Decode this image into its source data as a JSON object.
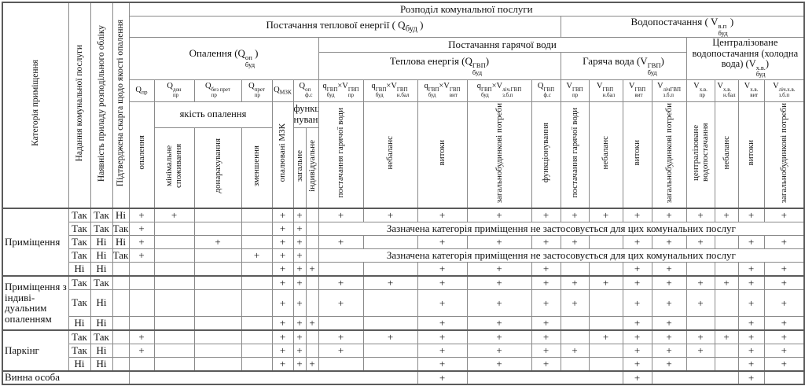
{
  "table": {
    "title": "Розподіл комунальної послуги",
    "left_headers": [
      "Категорія приміщення",
      "Надання комунальної послуги",
      "Наявність приладу розподільного обліку",
      "Підтверджена скарга щодо якості опалення"
    ],
    "sections": {
      "heat_supply": [
        {
          "t": "Постачання теплової енергії ( Q"
        },
        {
          "sub": "буд"
        },
        {
          "t": " )"
        }
      ],
      "water_supply": [
        {
          "t": "Водопостачання ( V"
        },
        {
          "sup": "в.п",
          "sub": "буд"
        },
        {
          "t": " )"
        }
      ],
      "heating": [
        {
          "t": "Опалення (Q"
        },
        {
          "sup": "оп",
          "sub": "буд"
        },
        {
          "t": ")"
        }
      ],
      "hot_water_supply": "Постачання гарячої води",
      "thermal_energy": [
        {
          "t": "Теплова енергія (Q"
        },
        {
          "sup": "ГВП",
          "sub": "буд"
        },
        {
          "t": ")"
        }
      ],
      "hot_water": [
        {
          "t": "Гаряча вода (V"
        },
        {
          "sup": "ГВП",
          "sub": "буд"
        },
        {
          "t": ")"
        }
      ],
      "cold_water": [
        {
          "t": "Централізоване водопостачання (холодна вода) (V"
        },
        {
          "sup": "х.в.",
          "sub": "буд"
        },
        {
          "t": ")"
        }
      ]
    },
    "subgroups": {
      "quality": "якість опалення",
      "functioning": "функціо-нування"
    },
    "formulas": [
      [
        {
          "t": "Q"
        },
        {
          "sub": "пр"
        }
      ],
      [
        {
          "t": "Q"
        },
        {
          "sup": "дон",
          "sub": "пр"
        }
      ],
      [
        {
          "t": "Q"
        },
        {
          "sup": "без прет",
          "sub": "пр"
        }
      ],
      [
        {
          "t": "Q"
        },
        {
          "sup": "прет",
          "sub": "пр"
        }
      ],
      [
        {
          "t": "Q"
        },
        {
          "sub": "МЗК"
        }
      ],
      [
        {
          "t": "Q"
        },
        {
          "sup": "оп",
          "sub": "ф.с"
        }
      ],
      [
        {
          "t": "q"
        },
        {
          "sup": "ГВП",
          "sub": "буд"
        },
        {
          "t": "×V"
        },
        {
          "sup": "ГВП",
          "sub": "пр"
        }
      ],
      [
        {
          "t": "q"
        },
        {
          "sup": "ГВП",
          "sub": "буд"
        },
        {
          "t": "×V"
        },
        {
          "sup": "ГВП",
          "sub": "н.бал"
        }
      ],
      [
        {
          "t": "q"
        },
        {
          "sup": "ГВП",
          "sub": "буд"
        },
        {
          "t": "×V"
        },
        {
          "sup": "ГВП",
          "sub": "вит"
        }
      ],
      [
        {
          "t": "q"
        },
        {
          "sup": "ГВП",
          "sub": "буд"
        },
        {
          "t": "×V"
        },
        {
          "sup": "ліч.ГВП",
          "sub": "з.б.п"
        }
      ],
      [
        {
          "t": "Q"
        },
        {
          "sup": "ГВП",
          "sub": "ф.с"
        }
      ],
      [
        {
          "t": "V"
        },
        {
          "sup": "ГВП",
          "sub": "пр"
        }
      ],
      [
        {
          "t": "V"
        },
        {
          "sup": "ГВП",
          "sub": "н.бал"
        }
      ],
      [
        {
          "t": "V"
        },
        {
          "sup": "ГВП",
          "sub": "вит"
        }
      ],
      [
        {
          "t": "V"
        },
        {
          "sup": "лічГВП",
          "sub": "з.б.п"
        }
      ],
      [
        {
          "t": "V"
        },
        {
          "sup": "х.в.",
          "sub": "пр"
        }
      ],
      [
        {
          "t": "V"
        },
        {
          "sup": "х.в.",
          "sub": "н.бал"
        }
      ],
      [
        {
          "t": "V"
        },
        {
          "sup": "х.в.",
          "sub": "вит"
        }
      ],
      [
        {
          "t": "V"
        },
        {
          "sup": "ліч.х.в.",
          "sub": "з.б.п"
        }
      ]
    ],
    "rotated_labels": [
      "опалення",
      "мінімальне споживання",
      "донарахування",
      "зменшення",
      "опалювані МЗК",
      "загальне",
      "індивідуальне",
      "постачання гарячої води",
      "небаланс",
      "витоки",
      "загальнобудинкові потреби",
      "функціонування",
      "постачання гарячої води",
      "небаланс",
      "витоки",
      "загальнобудинкові потреби",
      "централізоване водопостачання",
      "небаланс",
      "витоки",
      "загальнобудинкові потреби"
    ],
    "not_applicable_note": "Зазначена категорія приміщення не застосовується для цих комунальних послуг",
    "body": {
      "groups": [
        {
          "label": "Приміщення",
          "rows": [
            {
              "values": [
                "Так",
                "Так",
                "Ні"
              ],
              "marks": [
                "+",
                "+",
                "",
                "",
                "+",
                "+",
                "",
                "+",
                "+",
                "+",
                "+",
                "+",
                "+",
                "+",
                "+",
                "+",
                "+",
                "+",
                "+",
                "+"
              ]
            },
            {
              "values": [
                "Так",
                "Так",
                "Так"
              ],
              "o_marks": [
                "+",
                "",
                "",
                "",
                "+",
                "+",
                ""
              ],
              "note": true
            },
            {
              "values": [
                "Так",
                "Ні",
                "Ні"
              ],
              "marks": [
                "+",
                "",
                "+",
                "",
                "+",
                "+",
                "",
                "+",
                "",
                "+",
                "+",
                "+",
                "+",
                "",
                "+",
                "+",
                "+",
                "",
                "+",
                "+"
              ]
            },
            {
              "values": [
                "Так",
                "Ні",
                "Так"
              ],
              "o_marks": [
                "+",
                "",
                "",
                "+",
                "+",
                "+",
                ""
              ],
              "note": true
            },
            {
              "values": [
                "Ні",
                "Ні",
                ""
              ],
              "marks": [
                "",
                "",
                "",
                "",
                "+",
                "+",
                "+",
                "",
                "",
                "+",
                "+",
                "+",
                "",
                "",
                "+",
                "+",
                "",
                "",
                "+",
                "+"
              ]
            }
          ]
        },
        {
          "label": "Приміщення з індиві- дуальним опаленням",
          "rows": [
            {
              "values": [
                "Так",
                "Так",
                ""
              ],
              "marks": [
                "",
                "",
                "",
                "",
                "+",
                "+",
                "",
                "+",
                "+",
                "+",
                "+",
                "+",
                "+",
                "+",
                "+",
                "+",
                "+",
                "+",
                "+",
                "+"
              ]
            },
            {
              "values": [
                "Так",
                "Ні",
                ""
              ],
              "tall": true,
              "marks": [
                "",
                "",
                "",
                "",
                "+",
                "+",
                "",
                "+",
                "",
                "+",
                "+",
                "+",
                "+",
                "",
                "+",
                "+",
                "+",
                "",
                "+",
                "+"
              ]
            },
            {
              "values": [
                "Ні",
                "Ні",
                ""
              ],
              "marks": [
                "",
                "",
                "",
                "",
                "+",
                "+",
                "+",
                "",
                "",
                "+",
                "+",
                "+",
                "",
                "",
                "+",
                "+",
                "",
                "",
                "+",
                "+"
              ]
            }
          ]
        },
        {
          "label": "Паркінг",
          "rows": [
            {
              "values": [
                "Так",
                "Так",
                ""
              ],
              "marks": [
                "+",
                "",
                "",
                "",
                "+",
                "+",
                "",
                "+",
                "+",
                "+",
                "+",
                "+",
                "",
                "+",
                "+",
                "+",
                "+",
                "+",
                "+",
                "+"
              ]
            },
            {
              "values": [
                "Так",
                "Ні",
                ""
              ],
              "marks": [
                "+",
                "",
                "",
                "",
                "+",
                "+",
                "",
                "+",
                "",
                "+",
                "+",
                "+",
                "+",
                "",
                "+",
                "+",
                "+",
                "",
                "+",
                "+"
              ]
            },
            {
              "values": [
                "Ні",
                "Ні",
                ""
              ],
              "marks": [
                "",
                "",
                "",
                "",
                "+",
                "+",
                "+",
                "",
                "",
                "+",
                "+",
                "+",
                "",
                "",
                "+",
                "+",
                "",
                "",
                "+",
                "+"
              ]
            }
          ]
        }
      ],
      "guilty": {
        "label": "Винна особа",
        "cells": [
          {
            "span": 9
          },
          {
            "mark": "+"
          },
          {
            "span": 4
          },
          {
            "mark": "+"
          },
          {
            "span": 3
          },
          {
            "mark": "+"
          },
          {
            "span": 1
          }
        ]
      }
    }
  }
}
